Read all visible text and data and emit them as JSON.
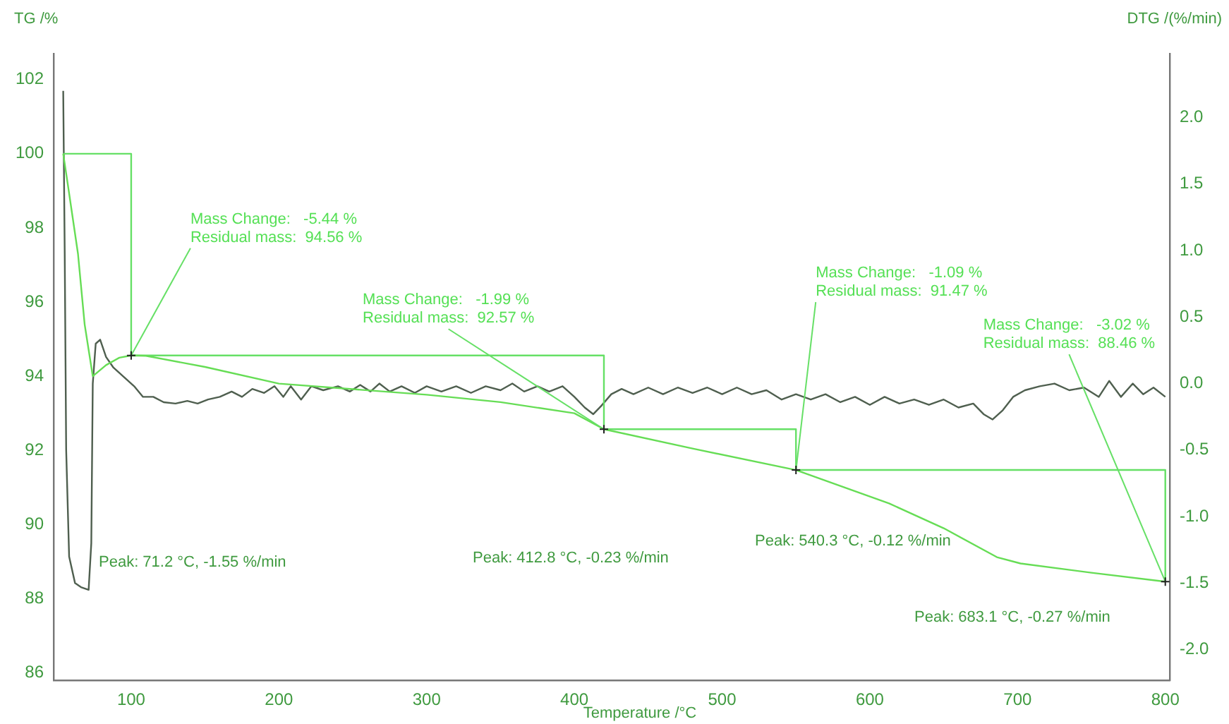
{
  "chart_data": {
    "type": "line",
    "xlabel": "Temperature /°C",
    "ylabel": "TG /%",
    "y2label": "DTG /(%/min)",
    "series": [
      {
        "name": null,
        "color": "#66dd55",
        "x": [
          54,
          57,
          64,
          68.5,
          74,
          83,
          92,
          100,
          110,
          150,
          200,
          250,
          300,
          350,
          400,
          420,
          480,
          550,
          613,
          650,
          686,
          702,
          750,
          800
        ],
        "values": [
          100,
          99.2,
          97.3,
          95.4,
          94.0,
          94.3,
          94.5,
          94.56,
          94.55,
          94.25,
          93.8,
          93.65,
          93.5,
          93.3,
          93.0,
          92.57,
          92.05,
          91.47,
          90.57,
          89.9,
          89.12,
          88.95,
          88.7,
          88.46
        ]
      },
      {
        "name": null,
        "type": "line",
        "color": "#66e066",
        "x": [
          54,
          100,
          100,
          420,
          420,
          550,
          550,
          800,
          800
        ],
        "values": [
          100,
          100,
          94.56,
          94.56,
          92.57,
          92.57,
          91.47,
          91.47,
          88.46
        ]
      },
      {
        "name": null,
        "color": "#4f5f4f",
        "axis": "y2",
        "x": [
          54,
          55,
          56,
          58,
          62,
          66,
          71.2,
          73,
          74,
          76,
          79,
          83,
          88,
          95,
          102,
          108,
          115,
          122,
          130,
          138,
          145,
          152,
          160,
          168,
          175,
          182,
          190,
          197,
          203,
          208,
          215,
          222,
          230,
          240,
          248,
          255,
          262,
          268,
          275,
          283,
          292,
          300,
          310,
          320,
          330,
          340,
          350,
          358,
          366,
          375,
          383,
          392,
          400,
          407,
          412.8,
          418,
          425,
          432,
          440,
          450,
          460,
          470,
          480,
          490,
          500,
          510,
          520,
          530,
          540.3,
          550,
          560,
          570,
          580,
          590,
          600,
          610,
          620,
          630,
          640,
          650,
          660,
          670,
          677,
          683.1,
          690,
          697,
          705,
          715,
          725,
          735,
          745,
          755,
          762,
          770,
          778,
          785,
          792,
          800
        ],
        "values": [
          2.2,
          1.0,
          -0.5,
          -1.3,
          -1.5,
          -1.53,
          -1.55,
          -1.2,
          0.0,
          0.3,
          0.33,
          0.2,
          0.12,
          0.05,
          -0.02,
          -0.1,
          -0.1,
          -0.14,
          -0.15,
          -0.13,
          -0.15,
          -0.12,
          -0.1,
          -0.06,
          -0.1,
          -0.04,
          -0.07,
          -0.02,
          -0.1,
          -0.02,
          -0.12,
          -0.02,
          -0.05,
          -0.02,
          -0.06,
          -0.01,
          -0.06,
          0.0,
          -0.06,
          -0.02,
          -0.07,
          -0.02,
          -0.06,
          -0.02,
          -0.07,
          -0.02,
          -0.05,
          0.0,
          -0.06,
          -0.02,
          -0.06,
          -0.02,
          -0.1,
          -0.18,
          -0.23,
          -0.17,
          -0.08,
          -0.04,
          -0.08,
          -0.03,
          -0.08,
          -0.03,
          -0.07,
          -0.03,
          -0.08,
          -0.03,
          -0.08,
          -0.05,
          -0.12,
          -0.08,
          -0.12,
          -0.08,
          -0.14,
          -0.1,
          -0.16,
          -0.1,
          -0.15,
          -0.12,
          -0.16,
          -0.12,
          -0.18,
          -0.15,
          -0.23,
          -0.27,
          -0.2,
          -0.1,
          -0.05,
          -0.02,
          0.0,
          -0.05,
          -0.03,
          -0.1,
          0.02,
          -0.1,
          0.0,
          -0.08,
          -0.03,
          -0.1
        ]
      }
    ],
    "xlim": [
      47.5,
      803
    ],
    "xticks": [
      100,
      200,
      300,
      400,
      500,
      600,
      700,
      800
    ],
    "ylim": [
      85.8,
      102.7
    ],
    "yticks": [
      86,
      88,
      90,
      92,
      94,
      96,
      98,
      100,
      102
    ],
    "y2lim": [
      -2.23,
      2.48
    ],
    "y2ticks": [
      {
        "value": -2,
        "label": "-2.0"
      },
      {
        "value": -1.5,
        "label": "-1.5"
      },
      {
        "value": -1,
        "label": "-1.0"
      },
      {
        "value": -0.5,
        "label": "-0.5"
      },
      {
        "value": 0,
        "label": "0.0"
      },
      {
        "value": 0.5,
        "label": "0.5"
      },
      {
        "value": 1,
        "label": "1.0"
      },
      {
        "value": 1.5,
        "label": "1.5"
      },
      {
        "value": 2,
        "label": "2.0"
      }
    ],
    "grid": false,
    "legend": false,
    "marker": "none",
    "line_style": "solid",
    "annotations": [
      {
        "text": "Mass Change:   -5.44 %\nResidual mass:  94.56 %",
        "x": 100,
        "y": 94.56
      },
      {
        "text": "Mass Change:   -1.99 %\nResidual mass:  92.57 %",
        "x": 420,
        "y": 92.57
      },
      {
        "text": "Mass Change:   -1.09 %\nResidual mass:  91.47 %",
        "x": 550,
        "y": 91.47
      },
      {
        "text": "Mass Change:   -3.02 %\nResidual mass:  88.46 %",
        "x": 800,
        "y": 88.46
      },
      "Peak: 71.2 °C, -1.55 %/min",
      "Peak: 412.8 °C, -0.23 %/min",
      "Peak: 540.3 °C, -0.12 %/min",
      "Peak: 683.1 °C, -0.27 %/min"
    ]
  }
}
